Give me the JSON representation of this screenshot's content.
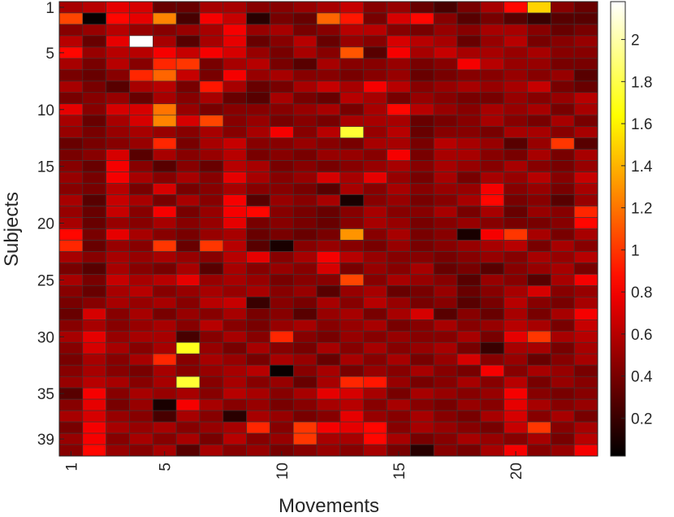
{
  "chart_data": {
    "type": "heatmap",
    "xlabel": "Movements",
    "ylabel": "Subjects",
    "x_ticks": [
      1,
      5,
      10,
      15,
      20
    ],
    "y_ticks": [
      1,
      5,
      10,
      15,
      20,
      25,
      30,
      35,
      39
    ],
    "colorbar_ticks": [
      0.2,
      0.4,
      0.6,
      0.8,
      1,
      1.2,
      1.4,
      1.6,
      1.8,
      2
    ],
    "colorbar_range": [
      0.02,
      2.18
    ],
    "colormap": "hot",
    "colormap_stops": [
      "#000000",
      "#ff0000",
      "#ffff00",
      "#ffffff"
    ],
    "n_rows": 40,
    "n_cols": 23,
    "values": [
      [
        0.55,
        0.6,
        0.75,
        0.7,
        0.35,
        0.35,
        0.55,
        0.55,
        0.45,
        0.45,
        0.5,
        0.55,
        0.65,
        0.45,
        0.5,
        0.35,
        0.25,
        0.4,
        0.55,
        0.85,
        1.5,
        0.45,
        0.35
      ],
      [
        1.05,
        0.05,
        0.85,
        0.75,
        1.25,
        0.25,
        0.8,
        0.65,
        0.15,
        0.4,
        0.35,
        1.15,
        0.9,
        0.4,
        0.7,
        0.85,
        0.45,
        0.3,
        0.4,
        0.3,
        0.2,
        0.3,
        0.3
      ],
      [
        0.45,
        0.5,
        0.6,
        0.5,
        0.45,
        0.5,
        0.55,
        0.8,
        0.5,
        0.55,
        0.4,
        0.45,
        0.6,
        0.6,
        0.45,
        0.4,
        0.5,
        0.45,
        0.55,
        0.55,
        0.45,
        0.35,
        0.4
      ],
      [
        0.6,
        0.35,
        0.75,
        2.18,
        0.55,
        0.3,
        0.55,
        0.75,
        0.35,
        0.45,
        0.6,
        0.35,
        0.5,
        0.45,
        0.7,
        0.6,
        0.55,
        0.35,
        0.5,
        0.6,
        0.4,
        0.45,
        0.5
      ],
      [
        0.85,
        0.5,
        0.6,
        0.6,
        0.8,
        0.65,
        0.8,
        0.7,
        0.5,
        0.4,
        0.55,
        0.45,
        1.1,
        0.3,
        0.8,
        0.55,
        0.65,
        0.55,
        0.55,
        0.5,
        0.55,
        0.45,
        0.45
      ],
      [
        0.55,
        0.4,
        0.6,
        0.45,
        0.95,
        1.0,
        0.4,
        0.55,
        0.6,
        0.4,
        0.3,
        0.55,
        0.45,
        0.45,
        0.5,
        0.4,
        0.45,
        0.8,
        0.6,
        0.5,
        0.5,
        0.4,
        0.4
      ],
      [
        0.4,
        0.35,
        0.45,
        0.95,
        1.15,
        0.65,
        0.4,
        0.8,
        0.5,
        0.55,
        0.45,
        0.45,
        0.4,
        0.45,
        0.5,
        0.35,
        0.4,
        0.45,
        0.45,
        0.5,
        0.45,
        0.5,
        0.3
      ],
      [
        0.55,
        0.4,
        0.3,
        0.55,
        0.6,
        0.4,
        0.9,
        0.55,
        0.35,
        0.4,
        0.55,
        0.65,
        0.55,
        0.8,
        0.6,
        0.45,
        0.5,
        0.55,
        0.5,
        0.55,
        0.65,
        0.4,
        0.35
      ],
      [
        0.4,
        0.45,
        0.5,
        0.35,
        0.55,
        0.45,
        0.55,
        0.35,
        0.3,
        0.55,
        0.4,
        0.35,
        0.6,
        0.55,
        0.4,
        0.5,
        0.45,
        0.4,
        0.4,
        0.5,
        0.45,
        0.5,
        0.6
      ],
      [
        0.75,
        0.45,
        0.7,
        0.7,
        1.2,
        0.5,
        0.4,
        0.45,
        0.45,
        0.45,
        0.5,
        0.55,
        0.4,
        0.55,
        0.85,
        0.6,
        0.5,
        0.45,
        0.55,
        0.5,
        0.55,
        0.4,
        0.55
      ],
      [
        0.55,
        0.35,
        0.55,
        0.7,
        1.25,
        0.7,
        1.05,
        0.45,
        0.5,
        0.4,
        0.45,
        0.4,
        0.55,
        0.55,
        0.55,
        0.35,
        0.4,
        0.45,
        0.55,
        0.45,
        0.4,
        0.55,
        0.4
      ],
      [
        0.5,
        0.4,
        0.5,
        0.55,
        0.5,
        0.45,
        0.55,
        0.45,
        0.55,
        0.8,
        0.45,
        0.6,
        1.75,
        0.5,
        0.6,
        0.35,
        0.45,
        0.45,
        0.4,
        0.55,
        0.55,
        0.45,
        0.55
      ],
      [
        0.35,
        0.4,
        0.45,
        0.5,
        0.95,
        0.4,
        0.55,
        0.65,
        0.45,
        0.45,
        0.5,
        0.45,
        0.4,
        0.55,
        0.55,
        0.4,
        0.6,
        0.55,
        0.5,
        0.3,
        0.5,
        1.0,
        0.3
      ],
      [
        0.4,
        0.45,
        0.7,
        0.3,
        0.55,
        0.45,
        0.5,
        0.6,
        0.4,
        0.45,
        0.4,
        0.5,
        0.5,
        0.45,
        0.8,
        0.4,
        0.55,
        0.55,
        0.45,
        0.4,
        0.55,
        0.4,
        0.55
      ],
      [
        0.45,
        0.35,
        0.8,
        0.45,
        0.3,
        0.45,
        0.35,
        0.6,
        0.55,
        0.4,
        0.45,
        0.4,
        0.45,
        0.5,
        0.55,
        0.45,
        0.55,
        0.5,
        0.45,
        0.55,
        0.45,
        0.4,
        0.5
      ],
      [
        0.5,
        0.4,
        0.8,
        0.55,
        0.45,
        0.55,
        0.45,
        0.75,
        0.55,
        0.45,
        0.5,
        0.7,
        0.55,
        0.75,
        0.5,
        0.4,
        0.55,
        0.4,
        0.55,
        0.5,
        0.6,
        0.45,
        0.65
      ],
      [
        0.45,
        0.4,
        0.6,
        0.4,
        0.7,
        0.4,
        0.45,
        0.55,
        0.45,
        0.45,
        0.4,
        0.3,
        0.55,
        0.45,
        0.55,
        0.45,
        0.5,
        0.5,
        0.8,
        0.45,
        0.5,
        0.4,
        0.55
      ],
      [
        0.55,
        0.3,
        0.65,
        0.55,
        0.4,
        0.55,
        0.45,
        0.8,
        0.3,
        0.5,
        0.45,
        0.55,
        0.1,
        0.45,
        0.5,
        0.4,
        0.45,
        0.55,
        0.85,
        0.4,
        0.45,
        0.3,
        0.5
      ],
      [
        0.5,
        0.35,
        0.65,
        0.45,
        0.8,
        0.4,
        0.5,
        0.8,
        0.85,
        0.45,
        0.4,
        0.35,
        0.45,
        0.55,
        0.45,
        0.45,
        0.55,
        0.4,
        0.55,
        0.35,
        0.5,
        0.45,
        0.95
      ],
      [
        0.55,
        0.35,
        0.5,
        0.45,
        0.55,
        0.45,
        0.5,
        0.75,
        0.4,
        0.45,
        0.4,
        0.35,
        0.45,
        0.55,
        0.5,
        0.4,
        0.45,
        0.5,
        0.45,
        0.4,
        0.4,
        0.45,
        0.85
      ],
      [
        0.85,
        0.4,
        0.75,
        0.55,
        0.45,
        0.4,
        0.5,
        0.55,
        0.35,
        0.4,
        0.35,
        0.4,
        1.3,
        0.45,
        0.55,
        0.4,
        0.45,
        0.1,
        0.8,
        1.0,
        0.55,
        0.4,
        0.55
      ],
      [
        0.95,
        0.35,
        0.5,
        0.45,
        1.0,
        0.35,
        1.0,
        0.6,
        0.3,
        0.1,
        0.45,
        0.5,
        0.45,
        0.4,
        0.5,
        0.4,
        0.45,
        0.5,
        0.55,
        0.6,
        0.4,
        0.55,
        0.45
      ],
      [
        0.55,
        0.45,
        0.55,
        0.5,
        0.55,
        0.5,
        0.45,
        0.6,
        0.75,
        0.45,
        0.55,
        0.8,
        0.6,
        0.5,
        0.45,
        0.45,
        0.4,
        0.45,
        0.5,
        0.45,
        0.55,
        0.5,
        0.6
      ],
      [
        0.4,
        0.3,
        0.55,
        0.45,
        0.4,
        0.55,
        0.3,
        0.55,
        0.45,
        0.5,
        0.45,
        0.7,
        0.4,
        0.5,
        0.45,
        0.55,
        0.35,
        0.4,
        0.3,
        0.45,
        0.5,
        0.55,
        0.4
      ],
      [
        0.55,
        0.4,
        0.65,
        0.55,
        0.6,
        0.75,
        0.5,
        0.55,
        0.5,
        0.4,
        0.45,
        0.45,
        1.05,
        0.45,
        0.55,
        0.5,
        0.45,
        0.3,
        0.5,
        0.45,
        0.3,
        0.55,
        0.8
      ],
      [
        0.45,
        0.35,
        0.55,
        0.6,
        0.45,
        0.5,
        0.55,
        0.5,
        0.55,
        0.45,
        0.5,
        0.3,
        0.5,
        0.55,
        0.35,
        0.4,
        0.5,
        0.35,
        0.45,
        0.55,
        0.7,
        0.45,
        0.5
      ],
      [
        0.4,
        0.45,
        0.55,
        0.5,
        0.55,
        0.45,
        0.6,
        0.65,
        0.2,
        0.45,
        0.4,
        0.55,
        0.45,
        0.6,
        0.5,
        0.4,
        0.45,
        0.3,
        0.4,
        0.6,
        0.45,
        0.4,
        0.55
      ],
      [
        0.35,
        0.7,
        0.45,
        0.55,
        0.4,
        0.5,
        0.45,
        0.55,
        0.4,
        0.45,
        0.3,
        0.5,
        0.55,
        0.4,
        0.55,
        0.7,
        0.3,
        0.45,
        0.35,
        0.55,
        0.4,
        0.55,
        0.8
      ],
      [
        0.45,
        0.55,
        0.45,
        0.5,
        0.55,
        0.45,
        0.6,
        0.45,
        0.4,
        0.5,
        0.55,
        0.45,
        0.5,
        0.55,
        0.4,
        0.45,
        0.55,
        0.45,
        0.5,
        0.6,
        0.55,
        0.4,
        0.65
      ],
      [
        0.55,
        0.75,
        0.5,
        0.55,
        0.55,
        0.25,
        0.45,
        0.55,
        0.45,
        0.95,
        0.45,
        0.4,
        0.5,
        0.45,
        0.5,
        0.45,
        0.45,
        0.55,
        0.4,
        0.75,
        1.0,
        0.55,
        0.6
      ],
      [
        0.45,
        0.7,
        0.55,
        0.45,
        0.55,
        1.7,
        0.5,
        0.4,
        0.55,
        0.45,
        0.4,
        0.55,
        0.45,
        0.55,
        0.45,
        0.5,
        0.55,
        0.4,
        0.2,
        0.55,
        0.55,
        0.4,
        0.55
      ],
      [
        0.4,
        0.55,
        0.45,
        0.55,
        0.95,
        0.45,
        0.55,
        0.5,
        0.4,
        0.55,
        0.5,
        0.35,
        0.55,
        0.45,
        0.55,
        0.4,
        0.5,
        0.7,
        0.45,
        0.5,
        0.35,
        0.45,
        0.55
      ],
      [
        0.45,
        0.55,
        0.45,
        0.4,
        0.55,
        0.45,
        0.5,
        0.55,
        0.6,
        0.05,
        0.45,
        0.55,
        0.4,
        0.5,
        0.45,
        0.55,
        0.45,
        0.4,
        0.8,
        0.45,
        0.55,
        0.5,
        0.4
      ],
      [
        0.5,
        0.6,
        0.55,
        0.45,
        0.55,
        1.75,
        0.45,
        0.55,
        0.45,
        0.5,
        0.35,
        0.55,
        0.95,
        0.9,
        0.5,
        0.4,
        0.45,
        0.55,
        0.45,
        0.6,
        0.4,
        0.5,
        0.45
      ],
      [
        0.3,
        0.8,
        0.45,
        0.55,
        0.5,
        0.55,
        0.45,
        0.6,
        0.55,
        0.45,
        0.55,
        0.75,
        0.7,
        0.55,
        0.4,
        0.55,
        0.5,
        0.45,
        0.5,
        0.8,
        0.45,
        0.4,
        0.45
      ],
      [
        0.45,
        0.75,
        0.4,
        0.5,
        0.1,
        0.8,
        0.55,
        0.45,
        0.5,
        0.4,
        0.45,
        0.55,
        0.6,
        0.45,
        0.55,
        0.45,
        0.4,
        0.5,
        0.45,
        0.75,
        0.55,
        0.45,
        0.5
      ],
      [
        0.55,
        0.7,
        0.5,
        0.45,
        0.25,
        0.55,
        0.45,
        0.15,
        0.55,
        0.5,
        0.4,
        0.45,
        0.75,
        0.5,
        0.45,
        0.55,
        0.45,
        0.4,
        0.55,
        0.7,
        0.45,
        0.55,
        0.4
      ],
      [
        0.4,
        0.8,
        0.55,
        0.5,
        0.55,
        0.45,
        0.5,
        0.55,
        0.95,
        0.45,
        1.0,
        0.8,
        0.75,
        0.85,
        0.45,
        0.55,
        0.5,
        0.45,
        0.4,
        0.65,
        1.0,
        0.45,
        0.55
      ],
      [
        0.5,
        0.8,
        0.45,
        0.55,
        0.45,
        0.55,
        0.4,
        0.6,
        0.45,
        0.5,
        1.0,
        0.55,
        0.55,
        0.85,
        0.55,
        0.4,
        0.45,
        0.55,
        0.5,
        0.45,
        0.55,
        0.4,
        0.6
      ],
      [
        0.45,
        0.85,
        0.5,
        0.45,
        0.55,
        0.3,
        0.55,
        0.45,
        0.5,
        0.4,
        0.45,
        0.5,
        0.45,
        0.55,
        0.4,
        0.15,
        0.45,
        0.4,
        0.55,
        0.8,
        0.45,
        0.5,
        0.8
      ]
    ]
  }
}
